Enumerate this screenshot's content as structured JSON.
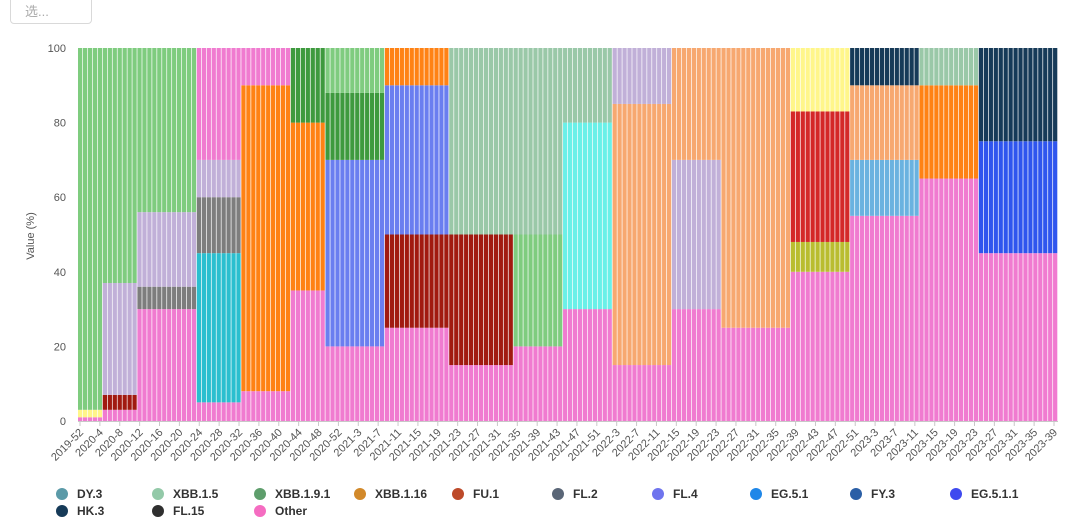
{
  "select": {
    "placeholder": "选..."
  },
  "chart_data": {
    "type": "bar",
    "stacked": true,
    "ylabel": "Value (%)",
    "ylim": [
      0,
      100
    ],
    "yticks": [
      0,
      20,
      40,
      60,
      80,
      100
    ],
    "grid": false,
    "x_tick_labels": [
      "2019-52",
      "2020-4",
      "2020-8",
      "2020-12",
      "2020-16",
      "2020-20",
      "2020-24",
      "2020-28",
      "2020-32",
      "2020-36",
      "2020-40",
      "2020-44",
      "2020-48",
      "2020-52",
      "2021-3",
      "2021-7",
      "2021-11",
      "2021-15",
      "2021-19",
      "2021-23",
      "2021-27",
      "2021-31",
      "2021-35",
      "2021-39",
      "2021-43",
      "2021-47",
      "2021-51",
      "2022-3",
      "2022-7",
      "2022-11",
      "2022-15",
      "2022-19",
      "2022-23",
      "2022-27",
      "2022-31",
      "2022-35",
      "2022-39",
      "2022-43",
      "2022-47",
      "2022-51",
      "2023-3",
      "2023-7",
      "2023-11",
      "2023-15",
      "2023-19",
      "2023-23",
      "2023-27",
      "2023-31",
      "2023-35",
      "2023-39"
    ],
    "legend_position": "bottom",
    "legend": [
      {
        "name": "DY.3",
        "color": "#5b9aa8"
      },
      {
        "name": "XBB.1.5",
        "color": "#93c9a8"
      },
      {
        "name": "XBB.1.9.1",
        "color": "#5e9e6c"
      },
      {
        "name": "XBB.1.16",
        "color": "#d2892a"
      },
      {
        "name": "FU.1",
        "color": "#bd4a2a"
      },
      {
        "name": "FL.2",
        "color": "#5a6677"
      },
      {
        "name": "FL.4",
        "color": "#6f74ee"
      },
      {
        "name": "EG.5.1",
        "color": "#1f87e8"
      },
      {
        "name": "FY.3",
        "color": "#2b5fa6"
      },
      {
        "name": "EG.5.1.1",
        "color": "#3f4aef"
      },
      {
        "name": "HK.3",
        "color": "#163a58"
      },
      {
        "name": "FL.15",
        "color": "#2f2f2f"
      },
      {
        "name": "Other",
        "color": "#f56cc1"
      }
    ],
    "segment_colors": {
      "green": "#7fcc7f",
      "lilac": "#c1b0d8",
      "pink": "#f07bd0",
      "teal": "#2bbfcf",
      "orange": "#ff8214",
      "dkgreen": "#3e9a3e",
      "blue": "#6a7ef0",
      "darkred": "#a11a10",
      "sage": "#9ac8a8",
      "cyan": "#6af0e8",
      "peach": "#f7a870",
      "red": "#d42828",
      "yellow": "#fff68a",
      "olive": "#b9bd30",
      "skyblue": "#6ab2e0",
      "gray": "#7d7d7d",
      "purple": "#a020f0",
      "navy": "#163a58",
      "royal": "#2f55ee"
    },
    "series_bands": [
      {
        "weeks": [
          0,
          5
        ],
        "segments": [
          {
            "c": "pink",
            "v": 1
          },
          {
            "c": "yellow",
            "v": 2
          },
          {
            "c": "green",
            "v": 97
          }
        ]
      },
      {
        "weeks": [
          5,
          12
        ],
        "segments": [
          {
            "c": "pink",
            "v": 3
          },
          {
            "c": "darkred",
            "v": 4
          },
          {
            "c": "lilac",
            "v": 30
          },
          {
            "c": "green",
            "v": 63
          }
        ]
      },
      {
        "weeks": [
          12,
          24
        ],
        "segments": [
          {
            "c": "pink",
            "v": 30
          },
          {
            "c": "gray",
            "v": 6
          },
          {
            "c": "lilac",
            "v": 20
          },
          {
            "c": "green",
            "v": 44
          }
        ]
      },
      {
        "weeks": [
          24,
          33
        ],
        "segments": [
          {
            "c": "pink",
            "v": 5
          },
          {
            "c": "teal",
            "v": 40
          },
          {
            "c": "gray",
            "v": 15
          },
          {
            "c": "lilac",
            "v": 10
          },
          {
            "c": "pink",
            "v": 30
          }
        ]
      },
      {
        "weeks": [
          33,
          43
        ],
        "segments": [
          {
            "c": "pink",
            "v": 8
          },
          {
            "c": "orange",
            "v": 82
          },
          {
            "c": "pink",
            "v": 10
          }
        ]
      },
      {
        "weeks": [
          43,
          50
        ],
        "segments": [
          {
            "c": "pink",
            "v": 35
          },
          {
            "c": "orange",
            "v": 45
          },
          {
            "c": "dkgreen",
            "v": 20
          }
        ]
      },
      {
        "weeks": [
          50,
          62
        ],
        "segments": [
          {
            "c": "pink",
            "v": 20
          },
          {
            "c": "blue",
            "v": 50
          },
          {
            "c": "dkgreen",
            "v": 18
          },
          {
            "c": "green",
            "v": 12
          }
        ]
      },
      {
        "weeks": [
          62,
          75
        ],
        "segments": [
          {
            "c": "pink",
            "v": 25
          },
          {
            "c": "darkred",
            "v": 25
          },
          {
            "c": "blue",
            "v": 40
          },
          {
            "c": "orange",
            "v": 10
          }
        ]
      },
      {
        "weeks": [
          75,
          88
        ],
        "segments": [
          {
            "c": "pink",
            "v": 15
          },
          {
            "c": "darkred",
            "v": 35
          },
          {
            "c": "sage",
            "v": 50
          }
        ]
      },
      {
        "weeks": [
          88,
          98
        ],
        "segments": [
          {
            "c": "pink",
            "v": 20
          },
          {
            "c": "green",
            "v": 30
          },
          {
            "c": "sage",
            "v": 50
          }
        ]
      },
      {
        "weeks": [
          98,
          108
        ],
        "segments": [
          {
            "c": "pink",
            "v": 30
          },
          {
            "c": "cyan",
            "v": 50
          },
          {
            "c": "sage",
            "v": 20
          }
        ]
      },
      {
        "weeks": [
          108,
          120
        ],
        "segments": [
          {
            "c": "pink",
            "v": 15
          },
          {
            "c": "peach",
            "v": 70
          },
          {
            "c": "lilac",
            "v": 15
          }
        ]
      },
      {
        "weeks": [
          120,
          130
        ],
        "segments": [
          {
            "c": "pink",
            "v": 30
          },
          {
            "c": "lilac",
            "v": 40
          },
          {
            "c": "peach",
            "v": 30
          }
        ]
      },
      {
        "weeks": [
          130,
          144
        ],
        "segments": [
          {
            "c": "pink",
            "v": 25
          },
          {
            "c": "peach",
            "v": 75
          }
        ]
      },
      {
        "weeks": [
          144,
          156
        ],
        "segments": [
          {
            "c": "pink",
            "v": 40
          },
          {
            "c": "olive",
            "v": 8
          },
          {
            "c": "red",
            "v": 35
          },
          {
            "c": "yellow",
            "v": 17
          }
        ]
      },
      {
        "weeks": [
          156,
          170
        ],
        "segments": [
          {
            "c": "pink",
            "v": 55
          },
          {
            "c": "skyblue",
            "v": 15
          },
          {
            "c": "peach",
            "v": 20
          },
          {
            "c": "navy",
            "v": 10
          }
        ]
      },
      {
        "weeks": [
          170,
          182
        ],
        "segments": [
          {
            "c": "pink",
            "v": 65
          },
          {
            "c": "orange",
            "v": 25
          },
          {
            "c": "sage",
            "v": 10
          }
        ]
      },
      {
        "weeks": [
          182,
          198
        ],
        "segments": [
          {
            "c": "pink",
            "v": 45
          },
          {
            "c": "royal",
            "v": 30
          },
          {
            "c": "navy",
            "v": 25
          }
        ]
      }
    ]
  }
}
